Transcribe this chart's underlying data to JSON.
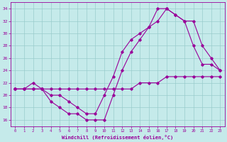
{
  "xlabel": "Windchill (Refroidissement éolien,°C)",
  "xlim_min": -0.5,
  "xlim_max": 23.5,
  "ylim_min": 15,
  "ylim_max": 35,
  "yticks": [
    16,
    18,
    20,
    22,
    24,
    26,
    28,
    30,
    32,
    34
  ],
  "xticks": [
    0,
    1,
    2,
    3,
    4,
    5,
    6,
    7,
    8,
    9,
    10,
    11,
    12,
    13,
    14,
    15,
    16,
    17,
    18,
    19,
    20,
    21,
    22,
    23
  ],
  "bg_color": "#c5eaea",
  "line_color": "#990099",
  "grid_color": "#99cccc",
  "line1_y": [
    21,
    21,
    21,
    21,
    19,
    18,
    17,
    17,
    16,
    16,
    16,
    20,
    24,
    27,
    29,
    31,
    32,
    34,
    33,
    32,
    28,
    25,
    25,
    24
  ],
  "line2_y": [
    21,
    21,
    21,
    21,
    21,
    21,
    21,
    21,
    21,
    21,
    21,
    21,
    21,
    21,
    22,
    22,
    22,
    23,
    23,
    23,
    23,
    23,
    23,
    23
  ],
  "line3_y": [
    21,
    21,
    22,
    21,
    20,
    20,
    19,
    18,
    17,
    17,
    20,
    23,
    27,
    29,
    30,
    31,
    34,
    34,
    33,
    32,
    32,
    28,
    26,
    24
  ]
}
